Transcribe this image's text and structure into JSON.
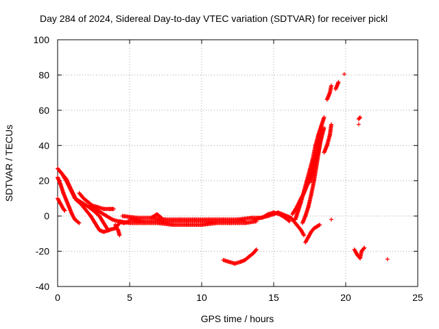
{
  "chart_data": {
    "type": "scatter",
    "title": "Day 284 of 2024, Sidereal Day-to-day VTEC variation (SDTVAR) for receiver pickl",
    "xlabel": "GPS time / hours",
    "ylabel": "SDTVAR / TECUs",
    "xlim": [
      0,
      25
    ],
    "ylim": [
      -40,
      100
    ],
    "xticks": [
      0,
      5,
      10,
      15,
      20,
      25
    ],
    "yticks": [
      -40,
      -20,
      0,
      20,
      40,
      60,
      80,
      100
    ],
    "grid": true,
    "marker": "+",
    "color": "#ff0000",
    "segments": [
      [
        [
          0.0,
          27
        ],
        [
          0.3,
          24
        ],
        [
          0.6,
          20
        ],
        [
          0.9,
          15
        ],
        [
          1.2,
          10
        ],
        [
          1.6,
          8
        ],
        [
          2.0,
          6
        ],
        [
          2.5,
          3
        ],
        [
          2.9,
          0
        ],
        [
          3.2,
          -4
        ],
        [
          3.5,
          -8
        ],
        [
          4.0,
          -7
        ],
        [
          4.3,
          -4
        ]
      ],
      [
        [
          0.0,
          22
        ],
        [
          0.2,
          18
        ],
        [
          0.4,
          13
        ],
        [
          0.6,
          9
        ],
        [
          0.8,
          5
        ],
        [
          1.0,
          1
        ],
        [
          1.2,
          -2
        ],
        [
          1.5,
          -4
        ]
      ],
      [
        [
          0.0,
          10
        ],
        [
          0.2,
          7
        ],
        [
          0.4,
          4
        ],
        [
          0.5,
          3
        ]
      ],
      [
        [
          0.2,
          25
        ],
        [
          0.6,
          21
        ],
        [
          1.0,
          14
        ],
        [
          1.3,
          9
        ],
        [
          1.6,
          7
        ],
        [
          2.0,
          3
        ],
        [
          2.3,
          0
        ],
        [
          2.6,
          -4
        ],
        [
          2.9,
          -8
        ],
        [
          3.2,
          -9
        ],
        [
          3.6,
          -8
        ]
      ],
      [
        [
          1.5,
          13
        ],
        [
          1.8,
          10
        ],
        [
          2.1,
          8
        ],
        [
          2.4,
          6
        ],
        [
          2.8,
          5
        ],
        [
          3.2,
          4
        ],
        [
          3.6,
          4
        ],
        [
          3.9,
          4
        ]
      ],
      [
        [
          2.2,
          6
        ],
        [
          2.6,
          4
        ],
        [
          3.0,
          2
        ],
        [
          3.4,
          0
        ],
        [
          3.8,
          -2
        ],
        [
          4.2,
          -3
        ],
        [
          4.6,
          -4
        ],
        [
          5.0,
          -3
        ]
      ],
      [
        [
          4.0,
          -5
        ],
        [
          4.2,
          -8
        ],
        [
          4.3,
          -11
        ]
      ],
      [
        [
          4.3,
          -3
        ],
        [
          5.0,
          -4
        ],
        [
          6.0,
          -4
        ],
        [
          7.0,
          -4
        ],
        [
          8.0,
          -5
        ],
        [
          9.0,
          -5
        ],
        [
          10.0,
          -5
        ],
        [
          11.0,
          -4
        ],
        [
          12.0,
          -4
        ],
        [
          13.0,
          -4
        ],
        [
          13.8,
          -3
        ]
      ],
      [
        [
          4.5,
          0
        ],
        [
          5.5,
          -1
        ],
        [
          6.5,
          -1
        ],
        [
          7.5,
          -2
        ],
        [
          8.5,
          -2
        ],
        [
          9.5,
          -2
        ],
        [
          10.5,
          -2
        ],
        [
          11.5,
          -2
        ],
        [
          12.5,
          -2
        ],
        [
          13.5,
          -1
        ],
        [
          14.0,
          -1
        ]
      ],
      [
        [
          5.0,
          -2
        ],
        [
          6.0,
          -3
        ],
        [
          7.0,
          -3
        ],
        [
          8.0,
          -3
        ],
        [
          9.0,
          -3
        ],
        [
          10.0,
          -3
        ],
        [
          11.0,
          -3
        ],
        [
          12.0,
          -3
        ],
        [
          13.0,
          -3
        ]
      ],
      [
        [
          6.5,
          -1
        ],
        [
          6.9,
          1
        ],
        [
          7.2,
          -1
        ]
      ],
      [
        [
          13.6,
          -2
        ],
        [
          14.1,
          -1
        ],
        [
          14.6,
          0
        ],
        [
          15.0,
          1
        ],
        [
          15.3,
          2
        ],
        [
          15.6,
          1
        ],
        [
          15.9,
          0
        ],
        [
          16.2,
          -1
        ],
        [
          16.4,
          -3
        ],
        [
          16.6,
          -5
        ],
        [
          16.9,
          -8
        ],
        [
          17.1,
          -11
        ]
      ],
      [
        [
          14.2,
          -1
        ],
        [
          14.6,
          1
        ],
        [
          15.0,
          2
        ],
        [
          15.4,
          1
        ],
        [
          15.8,
          -1
        ],
        [
          16.1,
          -3
        ]
      ],
      [
        [
          11.5,
          -25
        ],
        [
          11.9,
          -26
        ],
        [
          12.3,
          -27
        ],
        [
          12.7,
          -26
        ],
        [
          13.0,
          -25
        ],
        [
          13.3,
          -23
        ],
        [
          13.6,
          -21
        ],
        [
          13.8,
          -19
        ]
      ],
      [
        [
          16.5,
          -2
        ],
        [
          16.7,
          3
        ],
        [
          16.9,
          8
        ],
        [
          17.1,
          14
        ],
        [
          17.3,
          20
        ],
        [
          17.5,
          26
        ],
        [
          17.7,
          32
        ],
        [
          17.9,
          40
        ],
        [
          18.1,
          46
        ],
        [
          18.3,
          51
        ],
        [
          18.5,
          56
        ]
      ],
      [
        [
          16.3,
          1
        ],
        [
          16.6,
          5
        ],
        [
          16.9,
          10
        ],
        [
          17.1,
          13
        ],
        [
          17.3,
          17
        ],
        [
          17.5,
          22
        ],
        [
          17.7,
          27
        ],
        [
          17.9,
          34
        ],
        [
          18.1,
          41
        ],
        [
          18.3,
          48
        ]
      ],
      [
        [
          17.0,
          -4
        ],
        [
          17.2,
          0
        ],
        [
          17.4,
          5
        ],
        [
          17.6,
          12
        ],
        [
          17.8,
          20
        ],
        [
          18.0,
          30
        ],
        [
          18.2,
          40
        ],
        [
          18.4,
          50
        ]
      ],
      [
        [
          17.5,
          19
        ],
        [
          17.7,
          24
        ],
        [
          17.9,
          30
        ],
        [
          18.1,
          37
        ],
        [
          18.3,
          44
        ],
        [
          18.5,
          50
        ]
      ],
      [
        [
          17.2,
          -15
        ],
        [
          17.4,
          -12
        ],
        [
          17.6,
          -9
        ],
        [
          17.8,
          -7
        ],
        [
          18.0,
          -6
        ],
        [
          18.2,
          -5
        ]
      ],
      [
        [
          18.5,
          36
        ],
        [
          18.7,
          40
        ],
        [
          18.9,
          46
        ],
        [
          19.0,
          52
        ]
      ],
      [
        [
          18.7,
          66
        ],
        [
          18.9,
          70
        ],
        [
          19.0,
          74
        ]
      ],
      [
        [
          19.3,
          72
        ],
        [
          19.5,
          76
        ]
      ],
      [
        [
          19.9,
          80.5
        ]
      ],
      [
        [
          19.0,
          -2
        ]
      ],
      [
        [
          20.9,
          55
        ],
        [
          21.0,
          56
        ]
      ],
      [
        [
          20.9,
          52
        ]
      ],
      [
        [
          20.6,
          -19
        ],
        [
          20.8,
          -22
        ],
        [
          21.0,
          -24
        ],
        [
          21.1,
          -20
        ],
        [
          21.3,
          -18
        ]
      ],
      [
        [
          22.9,
          -24.5
        ]
      ]
    ]
  }
}
